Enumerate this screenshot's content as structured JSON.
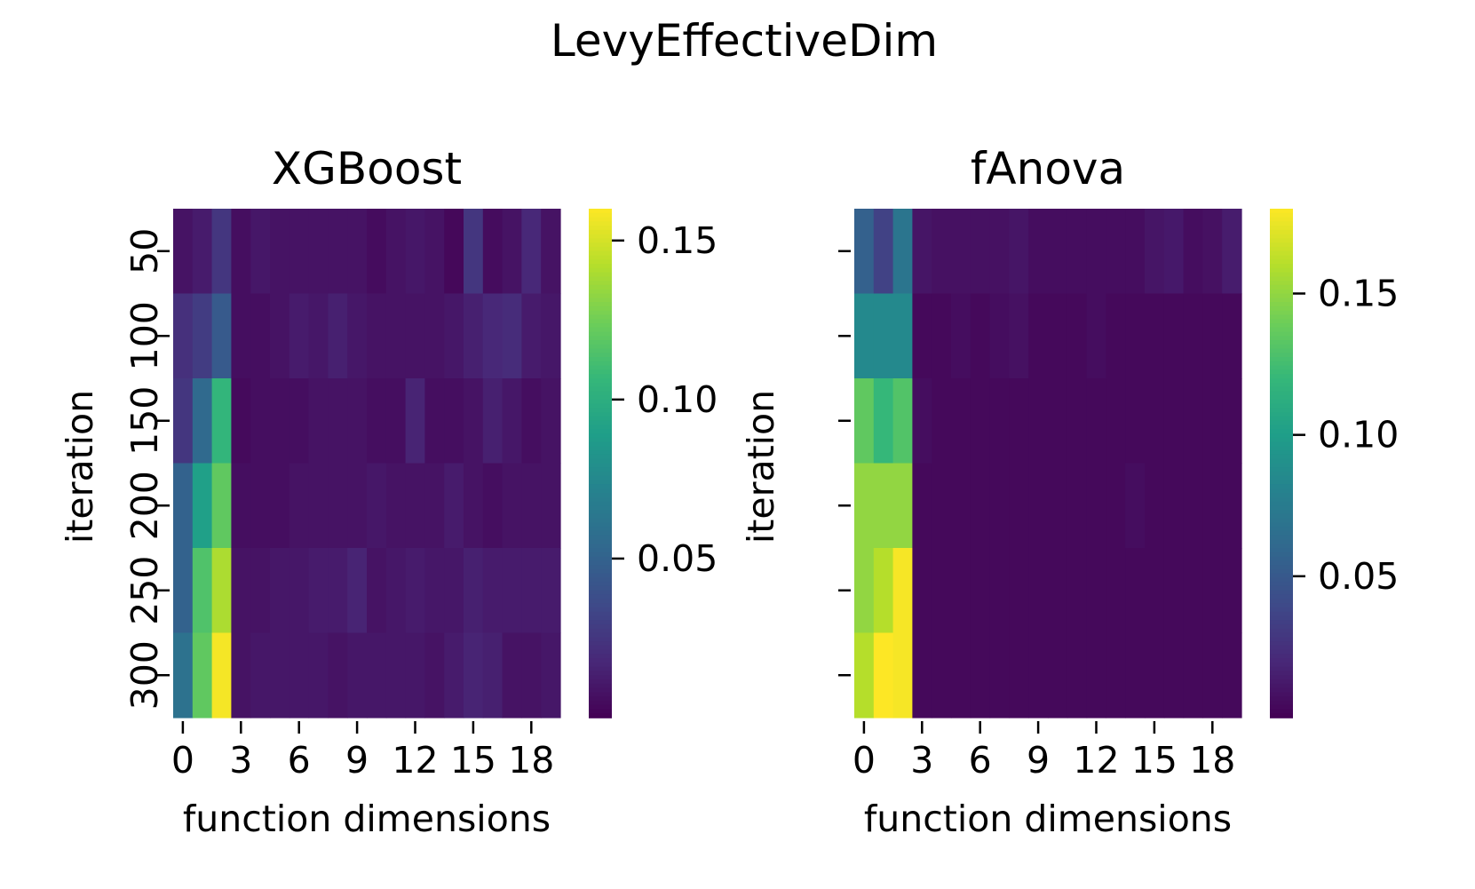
{
  "chart_data": {
    "type": "heatmap",
    "title": "LevyEffectiveDim",
    "colormap": "viridis",
    "panels": [
      {
        "title": "XGBoost",
        "xlabel": "function dimensions",
        "ylabel": "iteration",
        "x_tick_labels": [
          "0",
          "3",
          "6",
          "9",
          "12",
          "15",
          "18"
        ],
        "x_tick_positions": [
          0,
          3,
          6,
          9,
          12,
          15,
          18
        ],
        "y_tick_labels": [
          "50",
          "100",
          "150",
          "200",
          "250",
          "300"
        ],
        "vmin": 0.0,
        "vmax": 0.16,
        "colorbar_ticks": [
          0.05,
          0.1,
          0.15
        ],
        "colorbar_tick_labels": [
          "0.05",
          "0.10",
          "0.15"
        ],
        "values": [
          [
            0.008,
            0.012,
            0.025,
            0.006,
            0.01,
            0.008,
            0.008,
            0.008,
            0.008,
            0.008,
            0.005,
            0.008,
            0.01,
            0.008,
            0.003,
            0.025,
            0.005,
            0.008,
            0.018,
            0.008
          ],
          [
            0.022,
            0.028,
            0.045,
            0.006,
            0.006,
            0.008,
            0.012,
            0.01,
            0.014,
            0.01,
            0.008,
            0.008,
            0.008,
            0.008,
            0.01,
            0.014,
            0.018,
            0.02,
            0.012,
            0.01
          ],
          [
            0.025,
            0.055,
            0.105,
            0.004,
            0.006,
            0.006,
            0.006,
            0.008,
            0.008,
            0.008,
            0.006,
            0.006,
            0.016,
            0.006,
            0.006,
            0.008,
            0.014,
            0.01,
            0.006,
            0.008
          ],
          [
            0.05,
            0.09,
            0.12,
            0.006,
            0.006,
            0.006,
            0.008,
            0.008,
            0.008,
            0.008,
            0.01,
            0.008,
            0.008,
            0.008,
            0.012,
            0.008,
            0.006,
            0.008,
            0.008,
            0.008
          ],
          [
            0.05,
            0.115,
            0.14,
            0.008,
            0.008,
            0.01,
            0.01,
            0.012,
            0.012,
            0.016,
            0.008,
            0.01,
            0.012,
            0.01,
            0.01,
            0.014,
            0.012,
            0.012,
            0.012,
            0.012
          ],
          [
            0.06,
            0.12,
            0.158,
            0.008,
            0.01,
            0.01,
            0.01,
            0.01,
            0.008,
            0.01,
            0.01,
            0.01,
            0.01,
            0.008,
            0.012,
            0.016,
            0.014,
            0.008,
            0.008,
            0.01
          ]
        ]
      },
      {
        "title": "fAnova",
        "xlabel": "function dimensions",
        "ylabel": "iteration",
        "x_tick_labels": [
          "0",
          "3",
          "6",
          "9",
          "12",
          "15",
          "18"
        ],
        "x_tick_positions": [
          0,
          3,
          6,
          9,
          12,
          15,
          18
        ],
        "y_tick_labels": [
          "",
          "",
          "",
          "",
          "",
          ""
        ],
        "vmin": 0.0,
        "vmax": 0.18,
        "colorbar_ticks": [
          0.05,
          0.1,
          0.15
        ],
        "colorbar_tick_labels": [
          "0.05",
          "0.10",
          "0.15"
        ],
        "values": [
          [
            0.055,
            0.035,
            0.07,
            0.01,
            0.008,
            0.008,
            0.008,
            0.008,
            0.01,
            0.006,
            0.006,
            0.006,
            0.006,
            0.006,
            0.006,
            0.01,
            0.012,
            0.006,
            0.008,
            0.014
          ],
          [
            0.085,
            0.085,
            0.085,
            0.004,
            0.004,
            0.006,
            0.004,
            0.006,
            0.008,
            0.004,
            0.004,
            0.004,
            0.006,
            0.004,
            0.004,
            0.004,
            0.004,
            0.004,
            0.004,
            0.004
          ],
          [
            0.135,
            0.12,
            0.13,
            0.006,
            0.004,
            0.004,
            0.004,
            0.004,
            0.004,
            0.004,
            0.004,
            0.004,
            0.004,
            0.004,
            0.004,
            0.004,
            0.004,
            0.004,
            0.004,
            0.004
          ],
          [
            0.15,
            0.15,
            0.15,
            0.004,
            0.004,
            0.004,
            0.004,
            0.004,
            0.004,
            0.004,
            0.004,
            0.004,
            0.004,
            0.004,
            0.006,
            0.004,
            0.004,
            0.004,
            0.004,
            0.004
          ],
          [
            0.15,
            0.16,
            0.178,
            0.004,
            0.004,
            0.004,
            0.004,
            0.004,
            0.004,
            0.004,
            0.004,
            0.004,
            0.004,
            0.004,
            0.004,
            0.004,
            0.004,
            0.004,
            0.004,
            0.004
          ],
          [
            0.16,
            0.18,
            0.178,
            0.004,
            0.004,
            0.004,
            0.004,
            0.004,
            0.004,
            0.004,
            0.004,
            0.004,
            0.004,
            0.004,
            0.004,
            0.004,
            0.004,
            0.004,
            0.004,
            0.004
          ]
        ]
      }
    ]
  }
}
